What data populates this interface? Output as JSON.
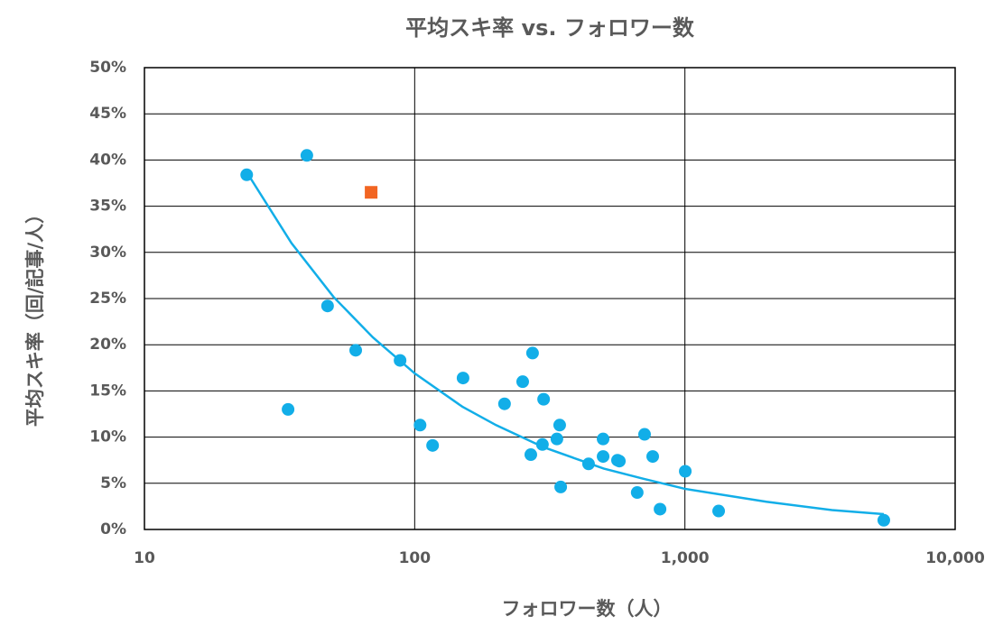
{
  "chart_data": {
    "type": "scatter",
    "title": "平均スキ率 vs. フォロワー数",
    "x_label": "フォロワー数（人）",
    "y_label": "平均スキ率（回/記事/人）",
    "x_scale": "log",
    "xlim": [
      10,
      10000
    ],
    "xticks": [
      10,
      100,
      {
        "value": 1000,
        "label": "1,000"
      },
      {
        "value": 10000,
        "label": "10,000"
      }
    ],
    "ylim": [
      0,
      50
    ],
    "yticks": [
      {
        "value": 0,
        "label": "0%"
      },
      {
        "value": 5,
        "label": "5%"
      },
      {
        "value": 10,
        "label": "10%"
      },
      {
        "value": 15,
        "label": "15%"
      },
      {
        "value": 20,
        "label": "20%"
      },
      {
        "value": 25,
        "label": "25%"
      },
      {
        "value": 30,
        "label": "30%"
      },
      {
        "value": 35,
        "label": "35%"
      },
      {
        "value": 40,
        "label": "40%"
      },
      {
        "value": 45,
        "label": "45%"
      },
      {
        "value": 50,
        "label": "50%"
      }
    ],
    "grid": true,
    "series": [
      {
        "color": "#12aee8",
        "marker": "circle",
        "x": [
          23.9,
          39.9,
          34,
          47.6,
          60.5,
          88.3,
          104.7,
          116.5,
          151,
          215,
          251,
          273,
          269,
          300,
          297,
          344,
          336,
          347,
          440,
          498,
          498,
          563,
          572,
          666,
          709,
          760,
          809,
          1003,
          1333,
          5445
        ],
        "values": [
          38.4,
          40.5,
          13.0,
          24.2,
          19.4,
          18.3,
          11.3,
          9.1,
          16.4,
          13.6,
          16.0,
          19.1,
          8.1,
          14.1,
          9.2,
          11.3,
          9.8,
          4.6,
          7.1,
          9.8,
          7.9,
          7.5,
          7.4,
          4.0,
          10.3,
          7.9,
          2.2,
          6.3,
          2.0,
          1.0
        ]
      },
      {
        "color": "#f26522",
        "marker": "square",
        "x": [
          69
        ],
        "values": [
          36.5
        ]
      },
      {
        "color": "#12aee8",
        "marker": "line",
        "x": [
          24,
          35,
          50,
          70,
          100,
          150,
          200,
          300,
          500,
          700,
          1000,
          2000,
          3500,
          5445
        ],
        "values": [
          38.6,
          31.0,
          25.2,
          20.8,
          16.9,
          13.3,
          11.3,
          8.9,
          6.6,
          5.5,
          4.4,
          3.0,
          2.1,
          1.66
        ]
      }
    ]
  }
}
